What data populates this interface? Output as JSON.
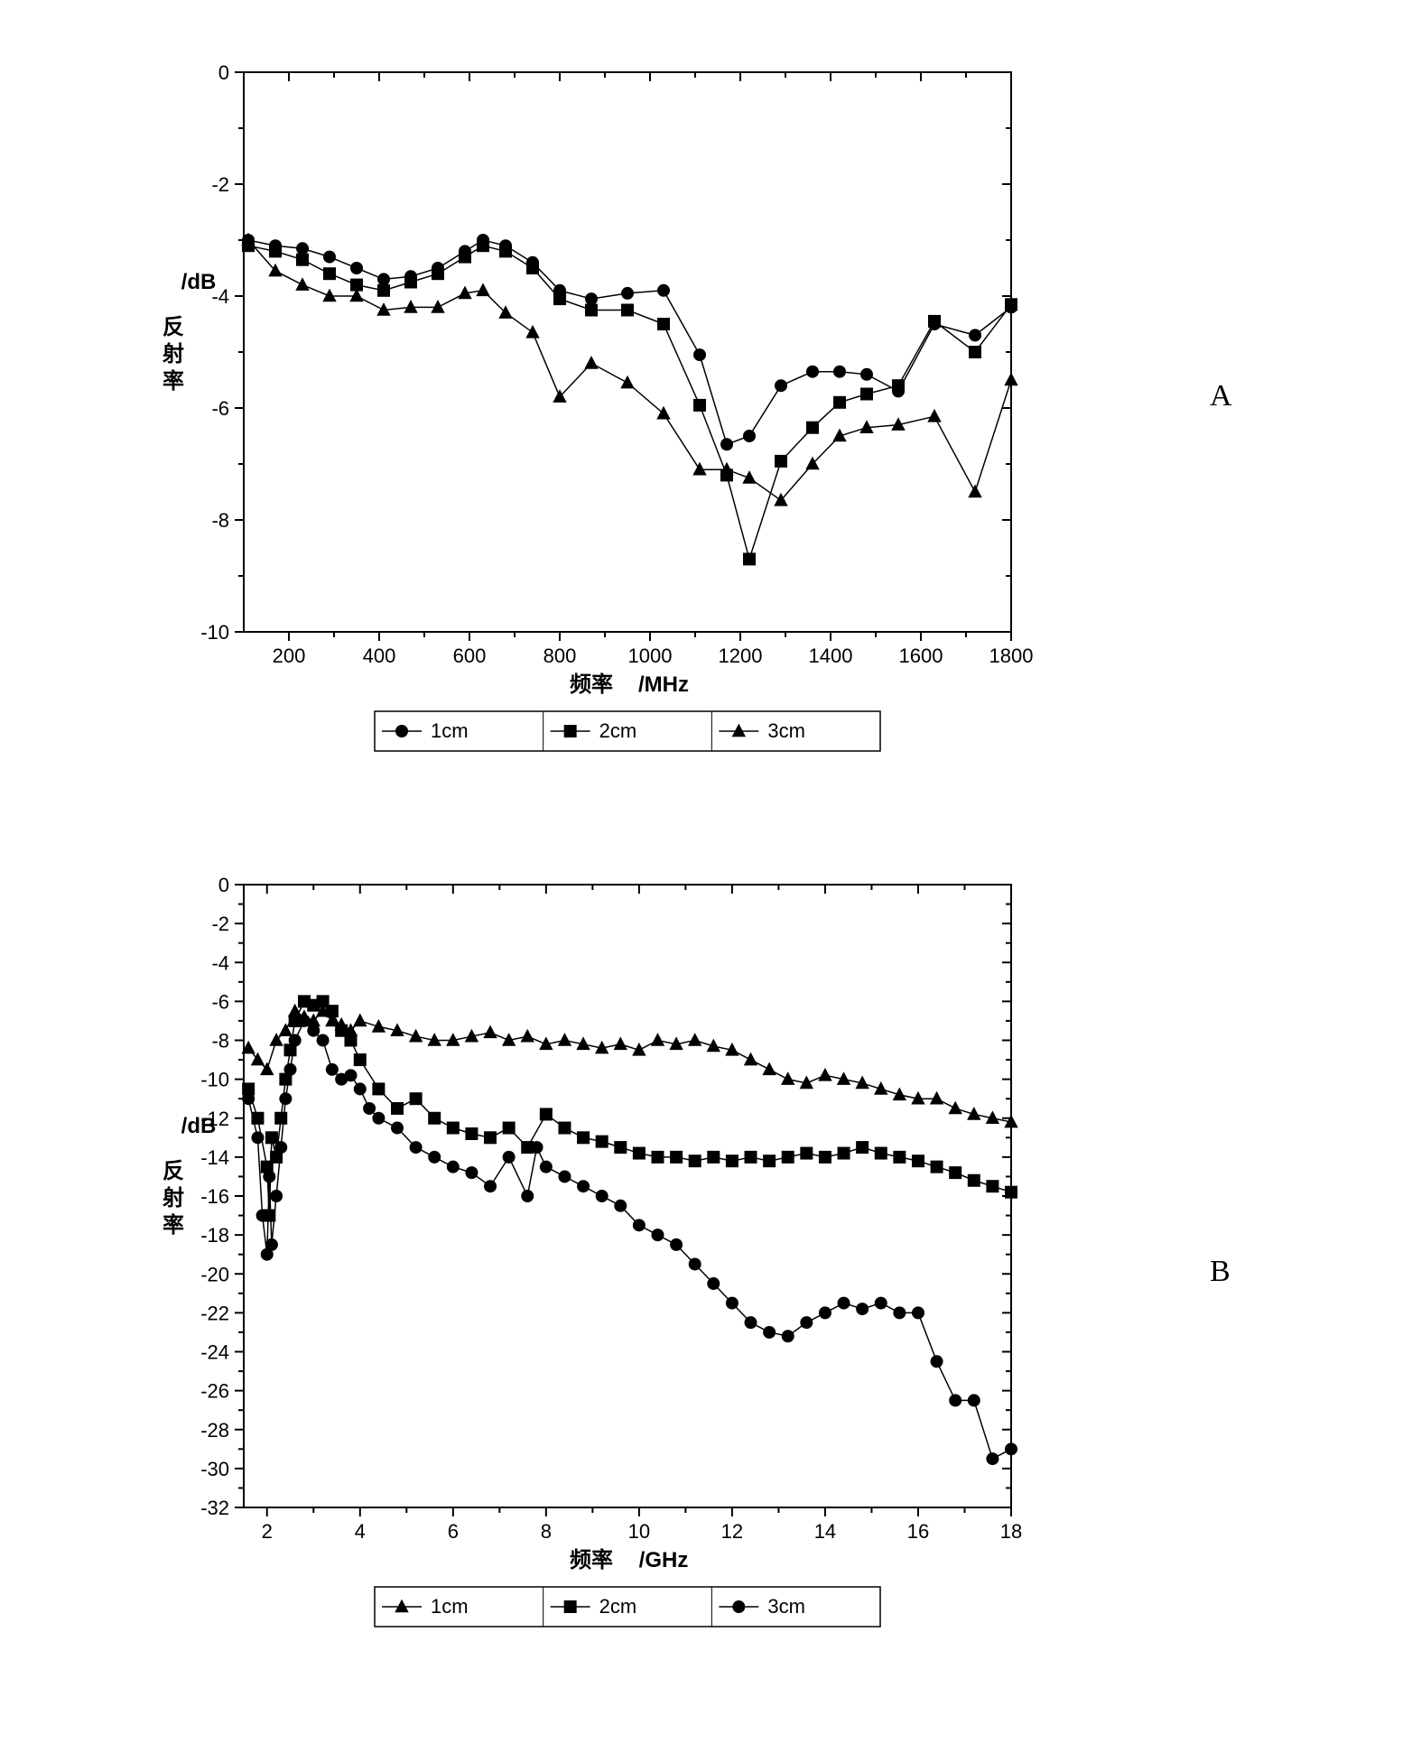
{
  "panelA": {
    "label": "A",
    "type": "line",
    "xlabel_cn": "频率",
    "xlabel_unit": "/MHz",
    "ylabel_cn": "反射率",
    "ylabel_unit": "/dB",
    "xlim": [
      100,
      1800
    ],
    "ylim": [
      -10,
      0
    ],
    "xticks": [
      200,
      400,
      600,
      800,
      1000,
      1200,
      1400,
      1600,
      1800
    ],
    "yticks": [
      -10,
      -8,
      -6,
      -4,
      -2,
      0
    ],
    "label_fontsize": 24,
    "tick_fontsize": 22,
    "line_color": "#000000",
    "line_width": 1.5,
    "marker_size": 7,
    "background": "#ffffff",
    "series": [
      {
        "name": "1cm",
        "marker": "circle",
        "x": [
          110,
          170,
          230,
          290,
          350,
          410,
          470,
          530,
          590,
          630,
          680,
          740,
          800,
          870,
          950,
          1030,
          1110,
          1170,
          1220,
          1290,
          1360,
          1420,
          1480,
          1550,
          1630,
          1720,
          1800
        ],
        "y": [
          -3.0,
          -3.1,
          -3.15,
          -3.3,
          -3.5,
          -3.7,
          -3.65,
          -3.5,
          -3.2,
          -3.0,
          -3.1,
          -3.4,
          -3.9,
          -4.05,
          -3.95,
          -3.9,
          -5.05,
          -6.65,
          -6.5,
          -5.6,
          -5.35,
          -5.35,
          -5.4,
          -5.7,
          -4.5,
          -4.7,
          -4.2
        ]
      },
      {
        "name": "2cm",
        "marker": "square",
        "x": [
          110,
          170,
          230,
          290,
          350,
          410,
          470,
          530,
          590,
          630,
          680,
          740,
          800,
          870,
          950,
          1030,
          1110,
          1170,
          1220,
          1290,
          1360,
          1420,
          1480,
          1550,
          1630,
          1720,
          1800
        ],
        "y": [
          -3.1,
          -3.2,
          -3.35,
          -3.6,
          -3.8,
          -3.9,
          -3.75,
          -3.6,
          -3.3,
          -3.1,
          -3.2,
          -3.5,
          -4.05,
          -4.25,
          -4.25,
          -4.5,
          -5.95,
          -7.2,
          -8.7,
          -6.95,
          -6.35,
          -5.9,
          -5.75,
          -5.6,
          -4.45,
          -5.0,
          -4.15
        ]
      },
      {
        "name": "3cm",
        "marker": "triangle",
        "x": [
          110,
          170,
          230,
          290,
          350,
          410,
          470,
          530,
          590,
          630,
          680,
          740,
          800,
          870,
          950,
          1030,
          1110,
          1170,
          1220,
          1290,
          1360,
          1420,
          1480,
          1550,
          1630,
          1720,
          1800
        ],
        "y": [
          -3.0,
          -3.55,
          -3.8,
          -4.0,
          -4.0,
          -4.25,
          -4.2,
          -4.2,
          -3.95,
          -3.9,
          -4.3,
          -4.65,
          -5.8,
          -5.2,
          -5.55,
          -6.1,
          -7.1,
          -7.1,
          -7.25,
          -7.65,
          -7.0,
          -6.5,
          -6.35,
          -6.3,
          -6.15,
          -7.5,
          -5.5
        ]
      }
    ],
    "legend": {
      "items": [
        "1cm",
        "2cm",
        "3cm"
      ],
      "markers": [
        "circle",
        "square",
        "triangle"
      ]
    }
  },
  "panelB": {
    "label": "B",
    "type": "line",
    "xlabel_cn": "频率",
    "xlabel_unit": "/GHz",
    "ylabel_cn": "反射率",
    "ylabel_unit": "/dB",
    "xlim": [
      1.5,
      18
    ],
    "ylim": [
      -32,
      0
    ],
    "xticks": [
      2,
      4,
      6,
      8,
      10,
      12,
      14,
      16,
      18
    ],
    "yticks": [
      -32,
      -30,
      -28,
      -26,
      -24,
      -22,
      -20,
      -18,
      -16,
      -14,
      -12,
      -10,
      -8,
      -6,
      -4,
      -2,
      0
    ],
    "label_fontsize": 24,
    "tick_fontsize": 22,
    "line_color": "#000000",
    "line_width": 1.5,
    "marker_size": 7,
    "background": "#ffffff",
    "series": [
      {
        "name": "1cm",
        "marker": "triangle",
        "x": [
          1.6,
          1.8,
          2.0,
          2.2,
          2.4,
          2.6,
          2.8,
          3.0,
          3.2,
          3.4,
          3.6,
          3.8,
          4.0,
          4.4,
          4.8,
          5.2,
          5.6,
          6.0,
          6.4,
          6.8,
          7.2,
          7.6,
          8.0,
          8.4,
          8.8,
          9.2,
          9.6,
          10.0,
          10.4,
          10.8,
          11.2,
          11.6,
          12.0,
          12.4,
          12.8,
          13.2,
          13.6,
          14.0,
          14.4,
          14.8,
          15.2,
          15.6,
          16.0,
          16.4,
          16.8,
          17.2,
          17.6,
          18.0
        ],
        "y": [
          -8.4,
          -9.0,
          -9.5,
          -8.0,
          -7.5,
          -6.5,
          -6.8,
          -7.0,
          -6.5,
          -7.0,
          -7.2,
          -7.5,
          -7.0,
          -7.3,
          -7.5,
          -7.8,
          -8.0,
          -8.0,
          -7.8,
          -7.6,
          -8.0,
          -7.8,
          -8.2,
          -8.0,
          -8.2,
          -8.4,
          -8.2,
          -8.5,
          -8.0,
          -8.2,
          -8.0,
          -8.3,
          -8.5,
          -9.0,
          -9.5,
          -10.0,
          -10.2,
          -9.8,
          -10.0,
          -10.2,
          -10.5,
          -10.8,
          -11.0,
          -11.0,
          -11.5,
          -11.8,
          -12.0,
          -12.2
        ]
      },
      {
        "name": "2cm",
        "marker": "square",
        "x": [
          1.6,
          1.8,
          2.0,
          2.05,
          2.1,
          2.2,
          2.3,
          2.4,
          2.5,
          2.6,
          2.8,
          3.0,
          3.2,
          3.4,
          3.6,
          3.8,
          4.0,
          4.4,
          4.8,
          5.2,
          5.6,
          6.0,
          6.4,
          6.8,
          7.2,
          7.6,
          8.0,
          8.4,
          8.8,
          9.2,
          9.6,
          10.0,
          10.4,
          10.8,
          11.2,
          11.6,
          12.0,
          12.4,
          12.8,
          13.2,
          13.6,
          14.0,
          14.4,
          14.8,
          15.2,
          15.6,
          16.0,
          16.4,
          16.8,
          17.2,
          17.6,
          18.0
        ],
        "y": [
          -10.5,
          -12.0,
          -14.5,
          -17.0,
          -13.0,
          -14.0,
          -12.0,
          -10.0,
          -8.5,
          -7.0,
          -6.0,
          -6.2,
          -6.0,
          -6.5,
          -7.5,
          -8.0,
          -9.0,
          -10.5,
          -11.5,
          -11.0,
          -12.0,
          -12.5,
          -12.8,
          -13.0,
          -12.5,
          -13.5,
          -11.8,
          -12.5,
          -13.0,
          -13.2,
          -13.5,
          -13.8,
          -14.0,
          -14.0,
          -14.2,
          -14.0,
          -14.2,
          -14.0,
          -14.2,
          -14.0,
          -13.8,
          -14.0,
          -13.8,
          -13.5,
          -13.8,
          -14.0,
          -14.2,
          -14.5,
          -14.8,
          -15.2,
          -15.5,
          -15.8
        ]
      },
      {
        "name": "3cm",
        "marker": "circle",
        "x": [
          1.6,
          1.8,
          1.9,
          2.0,
          2.05,
          2.1,
          2.2,
          2.3,
          2.4,
          2.5,
          2.6,
          2.8,
          3.0,
          3.2,
          3.4,
          3.6,
          3.8,
          4.0,
          4.2,
          4.4,
          4.8,
          5.2,
          5.6,
          6.0,
          6.4,
          6.8,
          7.2,
          7.6,
          7.8,
          8.0,
          8.4,
          8.8,
          9.2,
          9.6,
          10.0,
          10.4,
          10.8,
          11.2,
          11.6,
          12.0,
          12.4,
          12.8,
          13.2,
          13.6,
          14.0,
          14.4,
          14.8,
          15.2,
          15.6,
          16.0,
          16.4,
          16.8,
          17.2,
          17.6,
          18.0
        ],
        "y": [
          -11.0,
          -13.0,
          -17.0,
          -19.0,
          -15.0,
          -18.5,
          -16.0,
          -13.5,
          -11.0,
          -9.5,
          -8.0,
          -7.0,
          -7.5,
          -8.0,
          -9.5,
          -10.0,
          -9.8,
          -10.5,
          -11.5,
          -12.0,
          -12.5,
          -13.5,
          -14.0,
          -14.5,
          -14.8,
          -15.5,
          -14.0,
          -16.0,
          -13.5,
          -14.5,
          -15.0,
          -15.5,
          -16.0,
          -16.5,
          -17.5,
          -18.0,
          -18.5,
          -19.5,
          -20.5,
          -21.5,
          -22.5,
          -23.0,
          -23.2,
          -22.5,
          -22.0,
          -21.5,
          -21.8,
          -21.5,
          -22.0,
          -22.0,
          -24.5,
          -26.5,
          -26.5,
          -29.5,
          -29.0
        ]
      }
    ],
    "legend": {
      "items": [
        "1cm",
        "2cm",
        "3cm"
      ],
      "markers": [
        "triangle",
        "square",
        "circle"
      ]
    }
  }
}
